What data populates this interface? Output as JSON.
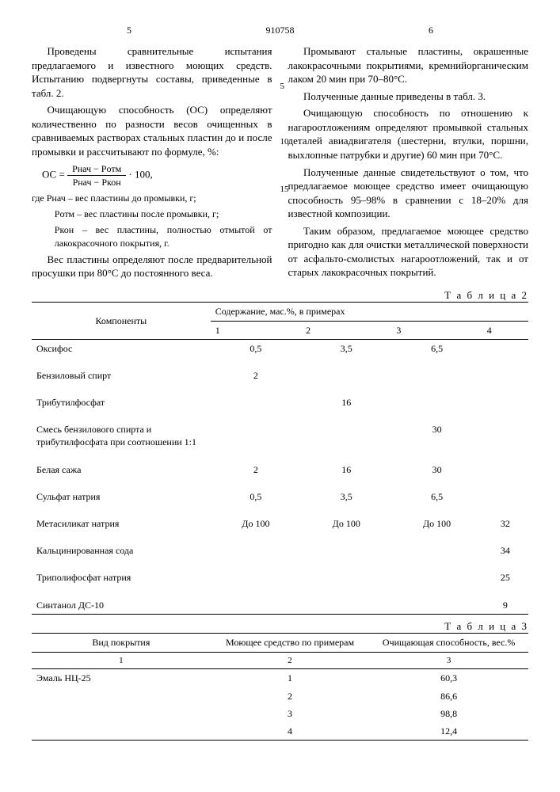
{
  "header": {
    "page_left": "5",
    "doc_id": "910758",
    "page_right": "6"
  },
  "left_col": {
    "p1": "Проведены сравнительные испытания предлагаемого и известного моющих средств. Испытанию подвергнуты составы, приведенные в табл. 2.",
    "p2": "Очищающую способность (ОС) определяют количественно по разности весов очищенных в сравниваемых растворах стальных пластин до и после промывки и рассчитывают по формуле, %:",
    "formula_lhs": "ОС =",
    "formula_num": "Pнач − Pотм",
    "formula_den": "Pнач − Pкон",
    "formula_tail": " · 100,",
    "def_where": "где Pнач – вес пластины до промывки, г;",
    "def_otm": "Pотм – вес пластины после промывки, г;",
    "def_kon": "Pкон – вес пластины, полностью отмытой от лакокрасочного покрытия, г.",
    "p3": "Вес пластины определяют после предварительной просушки при 80°С до постоянного веса."
  },
  "right_col": {
    "p1": "Промывают стальные пластины, окрашенные лакокрасочными покрытиями, кремнийорганическим лаком 20 мин при 70–80°С.",
    "p2": "Полученные данные приведены в табл. 3.",
    "p3": "Очищающую способность по отношению к нагароотложениям определяют промывкой стальных деталей авиадвигателя (шестерни, втулки, поршни, выхлопные патрубки и другие) 60 мин при 70°С.",
    "p4": "Полученные данные свидетельствуют о том, что предлагаемое моющее средство имеет очищающую способность 95–98% в сравнении с 18–20% для известной композиции.",
    "p5": "Таким образом, предлагаемое моющее средство пригодно как для очистки металлической поверхности от асфальто-смолистых нагароотложений, так и от старых лакокрасочных покрытий."
  },
  "margin_numbers": [
    "5",
    "10",
    "15"
  ],
  "table2": {
    "title": "Т а б л и ц а   2",
    "head_components": "Компоненты",
    "head_content": "Содержание, мас.%, в примерах",
    "cols": [
      "1",
      "2",
      "3",
      "4"
    ],
    "rows": [
      {
        "name": "Оксифос",
        "v": [
          "0,5",
          "3,5",
          "6,5",
          ""
        ]
      },
      {
        "name": "Бензиловый спирт",
        "v": [
          "2",
          "",
          "",
          ""
        ]
      },
      {
        "name": "Трибутилфосфат",
        "v": [
          "",
          "16",
          "",
          ""
        ]
      },
      {
        "name": "Смесь бензилового спирта и трибутилфосфата при соотношении 1:1",
        "v": [
          "",
          "",
          "30",
          ""
        ]
      },
      {
        "name": "Белая сажа",
        "v": [
          "2",
          "16",
          "30",
          ""
        ]
      },
      {
        "name": "Сульфат натрия",
        "v": [
          "0,5",
          "3,5",
          "6,5",
          ""
        ]
      },
      {
        "name": "Метасиликат натрия",
        "v": [
          "До 100",
          "До 100",
          "До 100",
          "32"
        ]
      },
      {
        "name": "Кальцинированная сода",
        "v": [
          "",
          "",
          "",
          "34"
        ]
      },
      {
        "name": "Триполифосфат натрия",
        "v": [
          "",
          "",
          "",
          "25"
        ]
      },
      {
        "name": "Синтанол ДС-10",
        "v": [
          "",
          "",
          "",
          "9"
        ]
      }
    ]
  },
  "table3": {
    "title": "Т а б л и ц а   3",
    "head_coating": "Вид покрытия",
    "head_agent": "Моющее средство по примерам",
    "head_ability": "Очищающая способность, вес.%",
    "subcols": [
      "1",
      "2",
      "3"
    ],
    "coating": "Эмаль НЦ-25",
    "rows": [
      {
        "n": "1",
        "v": "60,3"
      },
      {
        "n": "2",
        "v": "86,6"
      },
      {
        "n": "3",
        "v": "98,8"
      },
      {
        "n": "4",
        "v": "12,4"
      }
    ]
  }
}
